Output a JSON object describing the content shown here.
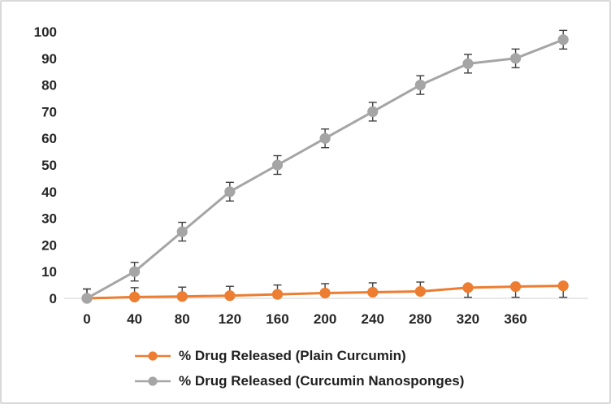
{
  "chart_data": {
    "type": "line",
    "title": "",
    "xlabel": "",
    "ylabel": "",
    "x": [
      0,
      40,
      80,
      120,
      160,
      200,
      240,
      280,
      320,
      360,
      400
    ],
    "x_tick_labels": [
      "0",
      "40",
      "80",
      "120",
      "160",
      "200",
      "240",
      "280",
      "320",
      "360"
    ],
    "y_ticks": [
      "0",
      "10",
      "20",
      "30",
      "40",
      "50",
      "60",
      "70",
      "80",
      "90",
      "100"
    ],
    "ylim": [
      0,
      100
    ],
    "grid": false,
    "legend_position": "bottom-left",
    "axis_color": "#d9d9d9",
    "text_color": "#262626",
    "error_bar_color": "#404040",
    "series": [
      {
        "name": "% Drug Released (Plain Curcumin)",
        "color": "#ED7D31",
        "values": [
          0,
          0.5,
          0.7,
          1,
          1.5,
          2,
          2.3,
          2.6,
          4,
          4.4,
          4.7
        ],
        "err_plus": [
          3.5,
          3.5,
          3.5,
          3.5,
          3.5,
          3.5,
          3.5,
          3.5,
          0,
          0,
          0
        ],
        "err_minus": [
          0,
          0,
          0,
          0,
          0,
          0,
          0,
          0,
          3.6,
          4,
          4.3
        ]
      },
      {
        "name": "% Drug Released (Curcumin Nanosponges)",
        "color": "#A5A5A5",
        "values": [
          0,
          10,
          25,
          40,
          50,
          60,
          70,
          80,
          88,
          90,
          97
        ],
        "err_plus": [
          3.5,
          3.5,
          3.5,
          3.5,
          3.5,
          3.5,
          3.5,
          3.5,
          3.5,
          3.5,
          3.5
        ],
        "err_minus": [
          0,
          3.5,
          3.5,
          3.5,
          3.5,
          3.5,
          3.5,
          3.5,
          3.5,
          3.5,
          3.5
        ]
      }
    ]
  }
}
